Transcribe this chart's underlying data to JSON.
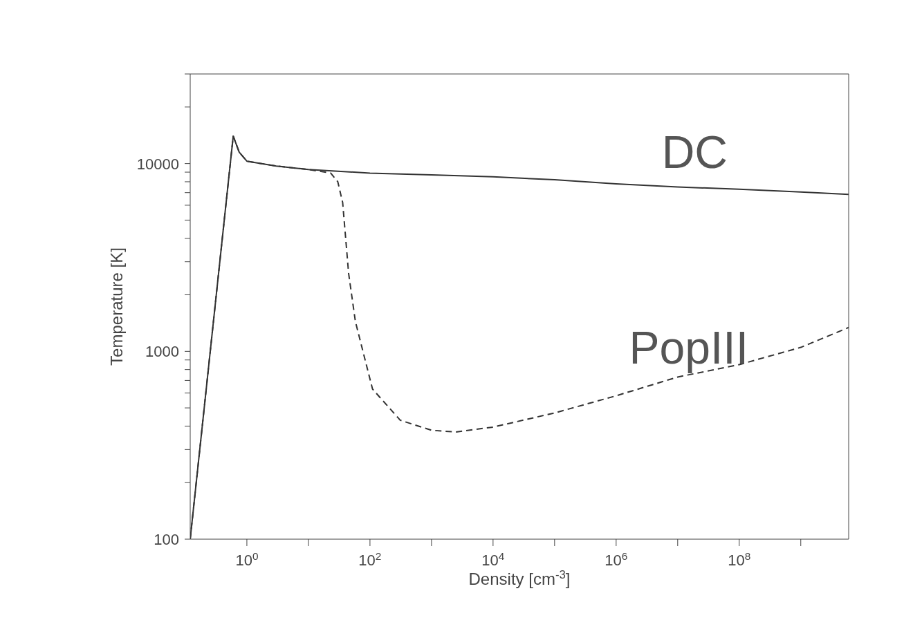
{
  "chart_data": {
    "type": "line",
    "xlabel": "Density [cm$^{-3}$]",
    "ylabel": "Temperature [K]",
    "log": "xy",
    "marker": "none",
    "xlim": [
      0.12,
      6000000000
    ],
    "ylim": [
      100,
      30000
    ],
    "xticks": [
      {
        "value": 1,
        "label": "10$^{0}$"
      },
      {
        "value": 10,
        "label": null
      },
      {
        "value": 100,
        "label": "10$^{2}$"
      },
      {
        "value": 1000,
        "label": null
      },
      {
        "value": 10000,
        "label": "10$^{4}$"
      },
      {
        "value": 100000,
        "label": null
      },
      {
        "value": 1000000,
        "label": "10$^{6}$"
      },
      {
        "value": 10000000,
        "label": null
      },
      {
        "value": 100000000,
        "label": "10$^{8}$"
      },
      {
        "value": 1000000000,
        "label": null
      }
    ],
    "yticks": [
      100,
      {
        "value": 200,
        "label": null
      },
      {
        "value": 300,
        "label": null
      },
      {
        "value": 400,
        "label": null
      },
      {
        "value": 500,
        "label": null
      },
      {
        "value": 600,
        "label": null
      },
      {
        "value": 700,
        "label": null
      },
      {
        "value": 800,
        "label": null
      },
      {
        "value": 900,
        "label": null
      },
      1000,
      {
        "value": 2000,
        "label": null
      },
      {
        "value": 3000,
        "label": null
      },
      {
        "value": 4000,
        "label": null
      },
      {
        "value": 5000,
        "label": null
      },
      {
        "value": 6000,
        "label": null
      },
      {
        "value": 7000,
        "label": null
      },
      {
        "value": 8000,
        "label": null
      },
      {
        "value": 9000,
        "label": null
      },
      10000,
      {
        "value": 20000,
        "label": null
      },
      {
        "value": 30000,
        "label": null
      }
    ],
    "series": [
      {
        "name": "DC",
        "color": "#333333",
        "line_style": "solid",
        "x": [
          0.12,
          0.6,
          0.75,
          1,
          3,
          10,
          100,
          1000,
          10000,
          100000,
          1000000,
          10000000,
          100000000,
          1000000000,
          6000000000
        ],
        "values": [
          100,
          14000,
          11500,
          10300,
          9700,
          9300,
          8900,
          8700,
          8500,
          8200,
          7800,
          7500,
          7300,
          7050,
          6850
        ]
      },
      {
        "name": "PopIII",
        "color": "#333333",
        "line_style": "dashed",
        "x": [
          0.12,
          0.6,
          0.75,
          1,
          3,
          10,
          23,
          30,
          36,
          45,
          58,
          110,
          310,
          1000,
          2450,
          10000,
          100000,
          1000000,
          10000000,
          100000000,
          1000000000,
          6000000000
        ],
        "values": [
          100,
          14000,
          11500,
          10300,
          9700,
          9300,
          8900,
          8000,
          6200,
          2600,
          1440,
          630,
          430,
          380,
          372,
          395,
          470,
          580,
          730,
          850,
          1050,
          1340
        ]
      }
    ]
  }
}
